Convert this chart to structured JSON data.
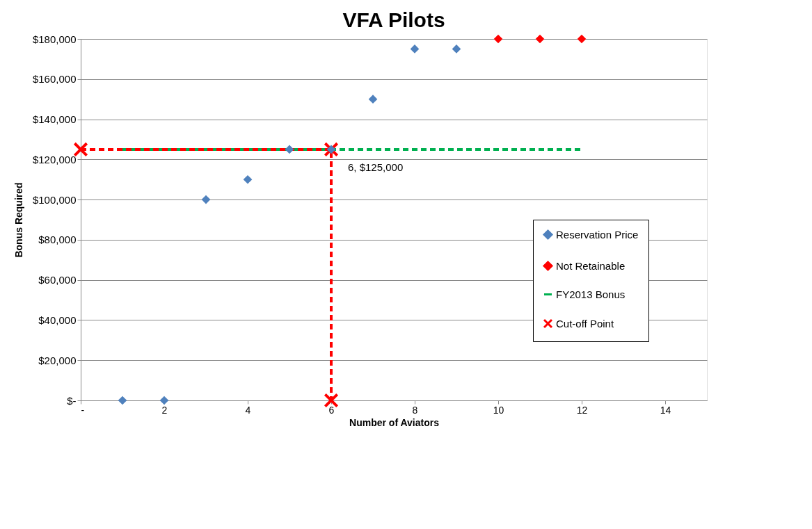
{
  "chart_data": {
    "type": "scatter",
    "title": "VFA Pilots",
    "xlabel": "Number of Aviators",
    "ylabel": "Bonus Required",
    "xlim": [
      0,
      15
    ],
    "xticks": [
      {
        "value": 0,
        "label": "-"
      },
      2,
      4,
      6,
      8,
      10,
      12,
      14
    ],
    "ylim": [
      0,
      180000
    ],
    "yticks": [
      {
        "value": 0,
        "label": "$-"
      },
      {
        "value": 20000,
        "label": "$20,000"
      },
      {
        "value": 40000,
        "label": "$40,000"
      },
      {
        "value": 60000,
        "label": "$60,000"
      },
      {
        "value": 80000,
        "label": "$80,000"
      },
      {
        "value": 100000,
        "label": "$100,000"
      },
      {
        "value": 120000,
        "label": "$120,000"
      },
      {
        "value": 140000,
        "label": "$140,000"
      },
      {
        "value": 160000,
        "label": "$160,000"
      },
      {
        "value": 180000,
        "label": "$180,000"
      }
    ],
    "grid": "y",
    "legend": "right",
    "annotations": [
      {
        "text": "6,  $125,000",
        "x": 6,
        "y": 125000
      }
    ],
    "series": [
      {
        "name": "Reservation Price",
        "marker": "diamond",
        "color": "#4f81bd",
        "x": [
          1,
          2,
          3,
          4,
          5,
          6,
          7,
          8,
          9
        ],
        "values": [
          0,
          0,
          100000,
          110000,
          125000,
          125000,
          150000,
          175000,
          175000
        ]
      },
      {
        "name": "Not Retainable",
        "marker": "diamond",
        "color": "#ff0000",
        "x": [
          10,
          11,
          12
        ],
        "values": [
          180000,
          180000,
          180000
        ]
      },
      {
        "name": "FY2013 Bonus",
        "type": "line",
        "marker": "none",
        "line_style": "dashed",
        "color": "#00b050",
        "x": [
          1,
          12
        ],
        "values": [
          125000,
          125000
        ]
      },
      {
        "name": "Cut-off Point",
        "type": "line",
        "marker": "cross",
        "line_style": "dashed",
        "color": "#ff0000",
        "x": [
          0,
          6,
          6
        ],
        "values": [
          125000,
          125000,
          0
        ]
      }
    ]
  }
}
